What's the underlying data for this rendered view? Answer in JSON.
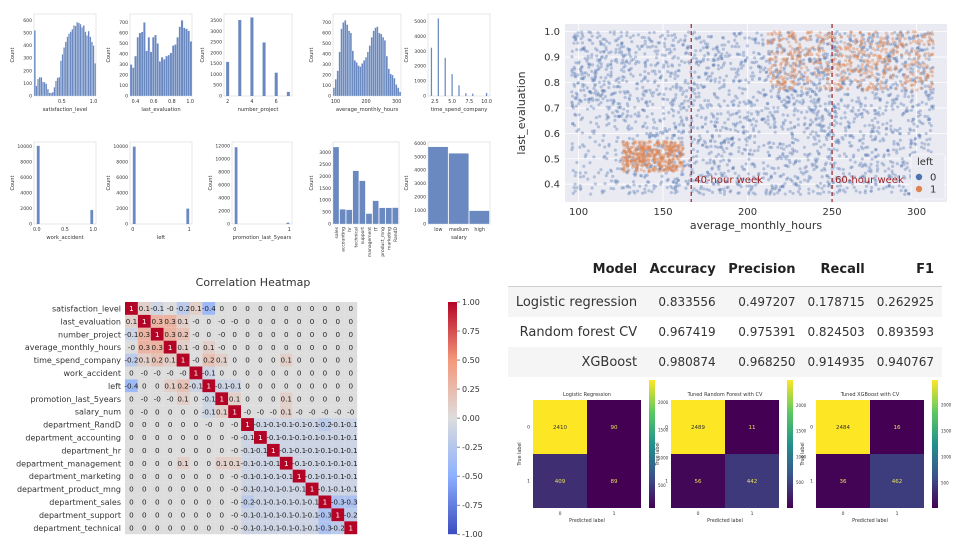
{
  "chart_data": [
    {
      "id": "hist_satisfaction",
      "type": "bar",
      "xlabel": "satisfaction_level",
      "ylabel": "Count",
      "xticks": [
        "0.5",
        "1.0"
      ],
      "xtick_values": [
        0.5,
        1.0
      ],
      "xlim": [
        0.06,
        1.04
      ],
      "yticks": [
        "0",
        "100",
        "200",
        "300",
        "400",
        "500",
        "600"
      ],
      "ylim": [
        0,
        650
      ],
      "values": [
        520,
        80,
        135,
        150,
        148,
        112,
        110,
        98,
        55,
        25,
        25,
        30,
        70,
        120,
        145,
        150,
        280,
        330,
        385,
        430,
        470,
        495,
        510,
        530,
        560,
        555,
        585,
        580,
        570,
        545,
        560,
        510,
        480,
        515,
        470,
        430,
        400,
        260
      ]
    },
    {
      "id": "hist_last_evaluation",
      "type": "bar",
      "xlabel": "last_evaluation",
      "ylabel": "Count",
      "xticks": [
        "0.4",
        "0.6",
        "0.8",
        "1.0"
      ],
      "xtick_values": [
        0.4,
        0.6,
        0.8,
        1.0
      ],
      "xlim": [
        0.34,
        1.02
      ],
      "yticks": [
        "0",
        "100",
        "200",
        "300",
        "400",
        "500",
        "600",
        "700"
      ],
      "ylim": [
        0,
        780
      ],
      "values": [
        300,
        270,
        380,
        560,
        600,
        610,
        700,
        430,
        560,
        420,
        560,
        580,
        500,
        330,
        370,
        350,
        380,
        390,
        410,
        480,
        490,
        560,
        660,
        720,
        650,
        640,
        620,
        520
      ]
    },
    {
      "id": "hist_number_project",
      "type": "bar",
      "xlabel": "number_project",
      "ylabel": "Count",
      "xticks": [
        "2",
        "4",
        "6"
      ],
      "xtick_values": [
        2,
        4,
        6
      ],
      "xlim": [
        1.7,
        7.3
      ],
      "bar_width": 0.25,
      "x": [
        2,
        3,
        4,
        5,
        6,
        7
      ],
      "yticks": [
        "0",
        "500",
        "1000",
        "1500",
        "2000",
        "2500",
        "3000",
        "3500"
      ],
      "ylim": [
        0,
        3800
      ],
      "values": [
        1580,
        3520,
        3640,
        2480,
        1080,
        190
      ]
    },
    {
      "id": "hist_average_monthly_hours",
      "type": "bar",
      "xlabel": "average_monthly_hours",
      "ylabel": "Count",
      "xticks": [
        "100",
        "200",
        "300"
      ],
      "xtick_values": [
        100,
        200,
        300
      ],
      "xlim": [
        92,
        314
      ],
      "yticks": [
        "0",
        "100",
        "200",
        "300",
        "400",
        "500",
        "600",
        "700"
      ],
      "ylim": [
        0,
        780
      ],
      "values": [
        80,
        160,
        240,
        420,
        640,
        700,
        720,
        680,
        620,
        600,
        430,
        340,
        320,
        290,
        280,
        310,
        340,
        370,
        420,
        480,
        560,
        620,
        650,
        660,
        600,
        590,
        560,
        530,
        380,
        260,
        210,
        200,
        170,
        110,
        80,
        40
      ]
    },
    {
      "id": "hist_time_spend_company",
      "type": "bar",
      "xlabel": "time_spend_company",
      "ylabel": "Count",
      "xticks": [
        "2.5",
        "5.0",
        "7.5",
        "10.0"
      ],
      "xtick_values": [
        2.5,
        5.0,
        7.5,
        10.0
      ],
      "xlim": [
        1.5,
        10.5
      ],
      "bar_width": 0.18,
      "x": [
        2,
        3,
        4,
        5,
        6,
        7,
        8,
        10
      ],
      "yticks": [
        "0",
        "1000",
        "2000",
        "3000",
        "4000",
        "5000"
      ],
      "ylim": [
        0,
        5500
      ],
      "values": [
        3240,
        5200,
        2560,
        1470,
        720,
        190,
        160,
        210
      ]
    },
    {
      "id": "hist_work_accident",
      "type": "bar",
      "xlabel": "work_accident",
      "ylabel": "Count",
      "xticks": [
        "0.0",
        "0.5",
        "1.0"
      ],
      "xtick_values": [
        0.0,
        0.5,
        1.0
      ],
      "xlim": [
        -0.05,
        1.05
      ],
      "bar_width": 0.05,
      "x": [
        0.025,
        0.975
      ],
      "yticks": [
        "0",
        "2000",
        "4000",
        "6000",
        "8000",
        "10000"
      ],
      "ylim": [
        0,
        10600
      ],
      "values": [
        10100,
        1800
      ]
    },
    {
      "id": "hist_left",
      "type": "bar",
      "xlabel": "left",
      "ylabel": "Count",
      "xticks": [
        "0",
        "1"
      ],
      "xtick_values": [
        0,
        1
      ],
      "xlim": [
        -0.05,
        1.05
      ],
      "bar_width": 0.05,
      "x": [
        0.025,
        0.975
      ],
      "yticks": [
        "0",
        "2000",
        "4000",
        "6000",
        "8000",
        "10000"
      ],
      "ylim": [
        0,
        10600
      ],
      "values": [
        10000,
        1990
      ]
    },
    {
      "id": "hist_promotion",
      "type": "bar",
      "xlabel": "promotion_last_5years",
      "ylabel": "Count",
      "xticks": [
        "0",
        "1"
      ],
      "xtick_values": [
        0,
        1
      ],
      "xlim": [
        -0.05,
        1.05
      ],
      "bar_width": 0.05,
      "x": [
        0.025,
        0.975
      ],
      "yticks": [
        "0",
        "2000",
        "4000",
        "6000",
        "8000",
        "10000",
        "12000"
      ],
      "ylim": [
        0,
        12600
      ],
      "values": [
        11800,
        200
      ]
    },
    {
      "id": "hist_department",
      "type": "bar",
      "xlabel": "department",
      "ylabel": "Count",
      "categories": [
        "sales",
        "accounting",
        "hr",
        "technical",
        "support",
        "management",
        "IT",
        "product_mng",
        "marketing",
        "RandD"
      ],
      "yticks": [
        "0",
        "500",
        "1000",
        "1500",
        "2000",
        "2500",
        "3000"
      ],
      "ylim": [
        0,
        3450
      ],
      "values": [
        3240,
        620,
        600,
        2240,
        1820,
        440,
        980,
        680,
        680,
        690
      ]
    },
    {
      "id": "hist_salary",
      "type": "bar",
      "xlabel": "salary",
      "ylabel": "Count",
      "categories": [
        "low",
        "medium",
        "high"
      ],
      "yticks": [
        "0",
        "1000",
        "2000",
        "3000",
        "4000",
        "5000",
        "6000"
      ],
      "ylim": [
        0,
        6100
      ],
      "values": [
        5740,
        5260,
        990
      ]
    },
    {
      "id": "scatter_hours_eval",
      "type": "scatter",
      "xlabel": "average_monthly_hours",
      "ylabel": "last_evaluation",
      "xlim": [
        92,
        318
      ],
      "ylim": [
        0.33,
        1.03
      ],
      "xticks": [
        "100",
        "150",
        "200",
        "250",
        "300"
      ],
      "xtick_values": [
        100,
        150,
        200,
        250,
        300
      ],
      "yticks": [
        "0.4",
        "0.5",
        "0.6",
        "0.7",
        "0.8",
        "0.9",
        "1.0"
      ],
      "ytick_values": [
        0.4,
        0.5,
        0.6,
        0.7,
        0.8,
        0.9,
        1.0
      ],
      "legend_title": "left",
      "legend_placement": "bottom-right",
      "series": [
        {
          "name": "0",
          "color": "#4c72b0",
          "region": {
            "x": [
              96,
              310
            ],
            "y": [
              0.36,
              1.0
            ]
          }
        },
        {
          "name": "1",
          "color": "#dd8452",
          "regions": [
            {
              "x": [
                126,
                162
              ],
              "y": [
                0.45,
                0.57
              ]
            },
            {
              "x": [
                212,
                310
              ],
              "y": [
                0.77,
                1.0
              ]
            }
          ]
        }
      ],
      "vlines": [
        {
          "x": 166.67,
          "label": "40-hour week",
          "color": "#9b2226"
        },
        {
          "x": 250,
          "label": "60-hour week",
          "color": "#9b2226"
        }
      ]
    },
    {
      "id": "correlation_heatmap",
      "type": "heatmap",
      "title": "Correlation Heatmap",
      "labels": [
        "satisfaction_level",
        "last_evaluation",
        "number_project",
        "average_monthly_hours",
        "time_spend_company",
        "work_accident",
        "left",
        "promotion_last_5years",
        "salary_num",
        "department_RandD",
        "department_accounting",
        "department_hr",
        "department_management",
        "department_marketing",
        "department_product_mng",
        "department_sales",
        "department_support",
        "department_technical"
      ],
      "colorbar": {
        "ticks": [
          "-1.00",
          "-0.75",
          "-0.50",
          "-0.25",
          "0.00",
          "0.25",
          "0.50",
          "0.75",
          "1.00"
        ],
        "tick_values": [
          -1,
          -0.75,
          -0.5,
          -0.25,
          0,
          0.25,
          0.5,
          0.75,
          1
        ],
        "range": [
          -1,
          1
        ]
      },
      "matrix": [
        [
          1,
          0.1,
          -0.1,
          0,
          -0.2,
          0.1,
          -0.4,
          0,
          0,
          0,
          0,
          0,
          0,
          0,
          0,
          0,
          0,
          0
        ],
        [
          0.1,
          1,
          0.3,
          0.3,
          0.1,
          0,
          0,
          0,
          0,
          0,
          0,
          0,
          0,
          0,
          0,
          0,
          0,
          0
        ],
        [
          -0.1,
          0.3,
          1,
          0.3,
          0.2,
          0,
          0,
          0,
          0,
          0,
          0,
          0,
          0,
          0,
          0,
          0,
          0,
          0
        ],
        [
          0,
          0.3,
          0.3,
          1,
          0.1,
          0,
          0.1,
          0,
          0,
          0,
          0,
          0,
          0,
          0,
          0,
          0,
          0,
          0
        ],
        [
          -0.2,
          0.1,
          0.2,
          0.1,
          1,
          0,
          0.2,
          0.1,
          0,
          0,
          0,
          0,
          0.1,
          0,
          0,
          0,
          0,
          0
        ],
        [
          0,
          0,
          0,
          0,
          0,
          1,
          -0.1,
          0,
          0,
          0,
          0,
          0,
          0,
          0,
          0,
          0,
          0,
          0
        ],
        [
          -0.4,
          0,
          0,
          0.1,
          0.2,
          -0.1,
          1,
          -0.1,
          -0.1,
          0,
          0,
          0,
          0,
          0,
          0,
          0,
          0,
          0
        ],
        [
          0,
          0,
          0,
          0,
          0.1,
          0,
          -0.1,
          1,
          0.1,
          0,
          0,
          0,
          0.1,
          0,
          0,
          0,
          0,
          0
        ],
        [
          0,
          0,
          0,
          0,
          0,
          0,
          -0.1,
          0.1,
          1,
          0,
          0,
          0,
          0.1,
          0,
          0,
          0,
          0,
          0
        ],
        [
          0,
          0,
          0,
          0,
          0,
          0,
          0,
          0,
          0,
          1,
          -0.1,
          -0.1,
          -0.1,
          -0.1,
          -0.1,
          -0.2,
          -0.1,
          -0.1
        ],
        [
          0,
          0,
          0,
          0,
          0,
          0,
          0,
          0,
          0,
          -0.1,
          1,
          -0.1,
          -0.1,
          -0.1,
          -0.1,
          -0.1,
          -0.1,
          -0.1
        ],
        [
          0,
          0,
          0,
          0,
          0,
          0,
          0,
          0,
          0,
          -0.1,
          -0.1,
          1,
          -0.1,
          -0.1,
          -0.1,
          -0.1,
          -0.1,
          -0.1
        ],
        [
          0,
          0,
          0,
          0,
          0.1,
          0,
          0,
          0.1,
          0.1,
          -0.1,
          -0.1,
          -0.1,
          1,
          -0.1,
          -0.1,
          -0.1,
          -0.1,
          -0.1
        ],
        [
          0,
          0,
          0,
          0,
          0,
          0,
          0,
          0,
          0,
          -0.1,
          -0.1,
          -0.1,
          -0.1,
          1,
          -0.1,
          -0.1,
          -0.1,
          -0.1
        ],
        [
          0,
          0,
          0,
          0,
          0,
          0,
          0,
          0,
          0,
          -0.1,
          -0.1,
          -0.1,
          -0.1,
          -0.1,
          1,
          -0.1,
          -0.1,
          -0.1
        ],
        [
          0,
          0,
          0,
          0,
          0,
          0,
          0,
          0,
          0,
          -0.2,
          -0.1,
          -0.1,
          -0.1,
          -0.1,
          -0.1,
          1,
          -0.3,
          -0.3
        ],
        [
          0,
          0,
          0,
          0,
          0,
          0,
          0,
          0,
          0,
          -0.1,
          -0.1,
          -0.1,
          -0.1,
          -0.1,
          -0.1,
          -0.3,
          1,
          -0.2
        ],
        [
          0,
          0,
          0,
          0,
          0,
          0,
          0,
          0,
          0,
          -0.1,
          -0.1,
          -0.1,
          -0.1,
          -0.1,
          -0.1,
          -0.3,
          -0.2,
          1
        ]
      ]
    },
    {
      "id": "metrics_table",
      "type": "table",
      "columns": [
        "Model",
        "Accuracy",
        "Precision",
        "Recall",
        "F1"
      ],
      "rows": [
        [
          "Logistic regression",
          "0.833556",
          "0.497207",
          "0.178715",
          "0.262925"
        ],
        [
          "Random forest CV",
          "0.967419",
          "0.975391",
          "0.824503",
          "0.893593"
        ],
        [
          "XGBoost",
          "0.980874",
          "0.968250",
          "0.914935",
          "0.940767"
        ]
      ]
    },
    {
      "id": "confusion_logreg",
      "type": "heatmap",
      "title": "Logistic Regression",
      "xlabel": "Predicted label",
      "ylabel": "True label",
      "class_labels": [
        "0",
        "1"
      ],
      "matrix": [
        [
          2410,
          90
        ],
        [
          409,
          89
        ]
      ],
      "colorbar": {
        "ticks": [
          "500",
          "1000",
          "1500",
          "2000"
        ],
        "tick_values": [
          500,
          1000,
          1500,
          2000
        ],
        "range": [
          89,
          2410
        ]
      }
    },
    {
      "id": "confusion_rf",
      "type": "heatmap",
      "title": "Tuned Random Forest with CV",
      "xlabel": "Predicted label",
      "ylabel": "True label",
      "class_labels": [
        "0",
        "1"
      ],
      "matrix": [
        [
          2489,
          11
        ],
        [
          56,
          442
        ]
      ],
      "colorbar": {
        "ticks": [
          "500",
          "1000",
          "1500",
          "2000"
        ],
        "tick_values": [
          500,
          1000,
          1500,
          2000
        ],
        "range": [
          11,
          2489
        ]
      }
    },
    {
      "id": "confusion_xgb",
      "type": "heatmap",
      "title": "Tuned XGBoost with CV",
      "xlabel": "Predicted label",
      "ylabel": "True label",
      "class_labels": [
        "0",
        "1"
      ],
      "matrix": [
        [
          2484,
          16
        ],
        [
          36,
          462
        ]
      ],
      "colorbar": {
        "ticks": [
          "500",
          "1000",
          "1500",
          "2000"
        ],
        "tick_values": [
          500,
          1000,
          1500,
          2000
        ],
        "range": [
          16,
          2484
        ]
      }
    }
  ]
}
